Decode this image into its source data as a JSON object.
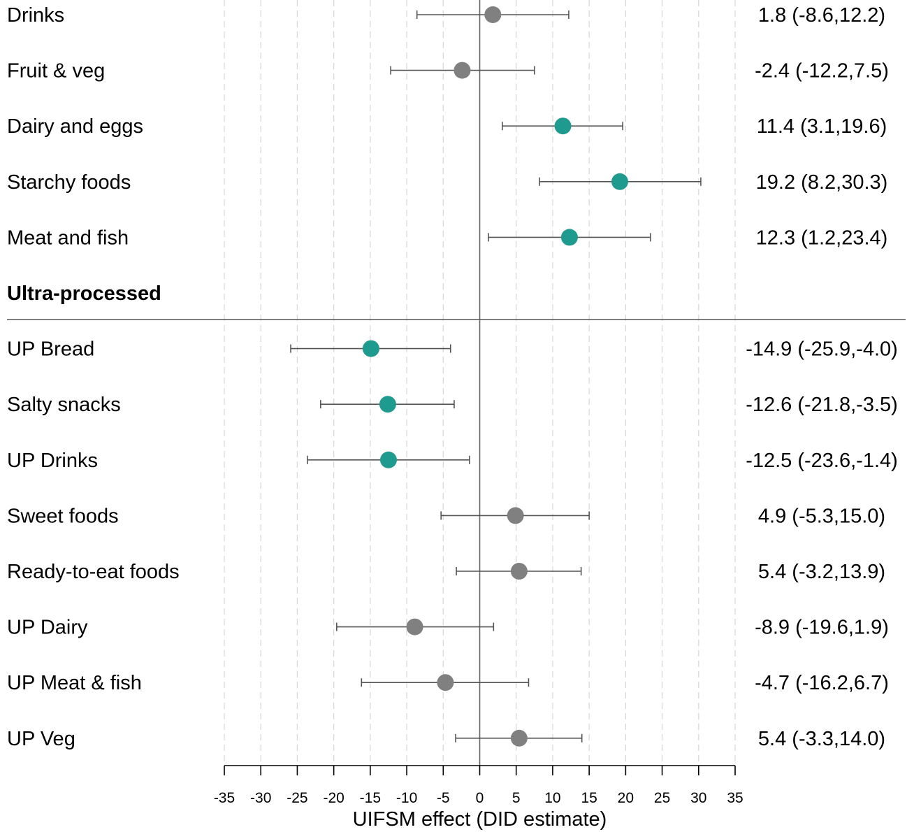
{
  "chart_data": {
    "type": "scatter",
    "subtype": "forest-plot",
    "xlabel": "UIFSM effect (DID estimate)",
    "xlim": [
      -35,
      35
    ],
    "xticks": [
      -35,
      -30,
      -25,
      -20,
      -15,
      -10,
      -5,
      0,
      5,
      10,
      15,
      20,
      25,
      30,
      35
    ],
    "grid": "vertical dashed",
    "colors": {
      "significant": "#1f9a8f",
      "non_significant": "#808080",
      "whisker": "#555555",
      "zero_line": "#666666"
    },
    "rows": [
      {
        "label": "Drinks",
        "estimate": 1.8,
        "lower": -8.6,
        "upper": 12.2,
        "significant": false,
        "text": "1.8 (-8.6,12.2)"
      },
      {
        "label": "Fruit & veg",
        "estimate": -2.4,
        "lower": -12.2,
        "upper": 7.5,
        "significant": false,
        "text": "-2.4 (-12.2,7.5)"
      },
      {
        "label": "Dairy and eggs",
        "estimate": 11.4,
        "lower": 3.1,
        "upper": 19.6,
        "significant": true,
        "text": "11.4 (3.1,19.6)"
      },
      {
        "label": "Starchy foods",
        "estimate": 19.2,
        "lower": 8.2,
        "upper": 30.3,
        "significant": true,
        "text": "19.2 (8.2,30.3)"
      },
      {
        "label": "Meat and fish",
        "estimate": 12.3,
        "lower": 1.2,
        "upper": 23.4,
        "significant": true,
        "text": "12.3 (1.2,23.4)"
      },
      {
        "label": "Ultra-processed",
        "header": true
      },
      {
        "label": "UP Bread",
        "estimate": -14.9,
        "lower": -25.9,
        "upper": -4.0,
        "significant": true,
        "text": "-14.9 (-25.9,-4.0)"
      },
      {
        "label": "Salty snacks",
        "estimate": -12.6,
        "lower": -21.8,
        "upper": -3.5,
        "significant": true,
        "text": "-12.6 (-21.8,-3.5)"
      },
      {
        "label": "UP Drinks",
        "estimate": -12.5,
        "lower": -23.6,
        "upper": -1.4,
        "significant": true,
        "text": "-12.5 (-23.6,-1.4)"
      },
      {
        "label": "Sweet foods",
        "estimate": 4.9,
        "lower": -5.3,
        "upper": 15.0,
        "significant": false,
        "text": "4.9 (-5.3,15.0)"
      },
      {
        "label": "Ready-to-eat foods",
        "estimate": 5.4,
        "lower": -3.2,
        "upper": 13.9,
        "significant": false,
        "text": "5.4 (-3.2,13.9)"
      },
      {
        "label": "UP Dairy",
        "estimate": -8.9,
        "lower": -19.6,
        "upper": 1.9,
        "significant": false,
        "text": "-8.9 (-19.6,1.9)"
      },
      {
        "label": "UP Meat & fish",
        "estimate": -4.7,
        "lower": -16.2,
        "upper": 6.7,
        "significant": false,
        "text": "-4.7 (-16.2,6.7)"
      },
      {
        "label": "UP Veg",
        "estimate": 5.4,
        "lower": -3.3,
        "upper": 14.0,
        "significant": false,
        "text": "5.4 (-3.3,14.0)"
      }
    ]
  }
}
